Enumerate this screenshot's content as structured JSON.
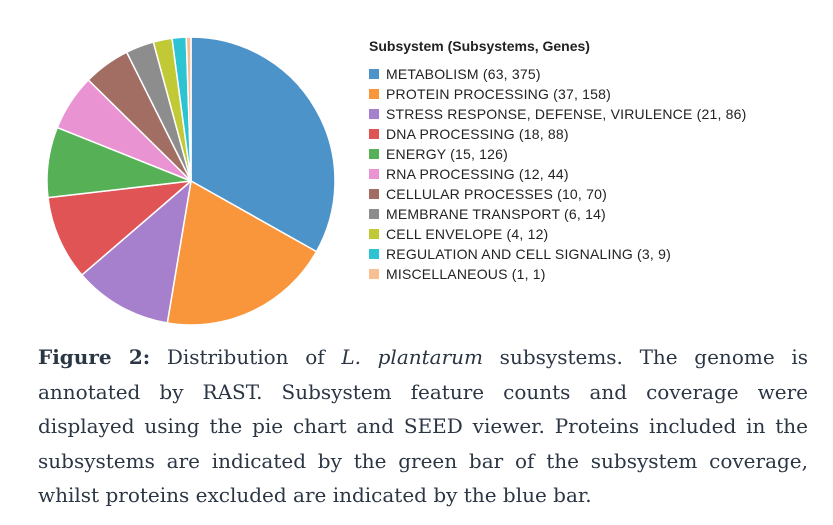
{
  "chart_data": {
    "type": "pie",
    "legend_title": "Subsystem (Subsystems, Genes)",
    "legend_position": "right",
    "start_angle_degrees": 0,
    "direction": "clockwise",
    "slices": [
      {
        "label": "METABOLISM (63, 375)",
        "name": "METABOLISM",
        "subsystems": 63,
        "genes": 375,
        "color": "#4c93c9"
      },
      {
        "label": "PROTEIN PROCESSING (37, 158)",
        "name": "PROTEIN PROCESSING",
        "subsystems": 37,
        "genes": 158,
        "color": "#f9963b"
      },
      {
        "label": "STRESS RESPONSE, DEFENSE, VIRULENCE (21, 86)",
        "name": "STRESS RESPONSE, DEFENSE, VIRULENCE",
        "subsystems": 21,
        "genes": 86,
        "color": "#a780cd"
      },
      {
        "label": "DNA PROCESSING (18, 88)",
        "name": "DNA PROCESSING",
        "subsystems": 18,
        "genes": 88,
        "color": "#e05455"
      },
      {
        "label": "ENERGY (15, 126)",
        "name": "ENERGY",
        "subsystems": 15,
        "genes": 126,
        "color": "#56b156"
      },
      {
        "label": "RNA PROCESSING (12, 44)",
        "name": "RNA PROCESSING",
        "subsystems": 12,
        "genes": 44,
        "color": "#ea93d2"
      },
      {
        "label": "CELLULAR PROCESSES (10, 70)",
        "name": "CELLULAR PROCESSES",
        "subsystems": 10,
        "genes": 70,
        "color": "#a26e63"
      },
      {
        "label": "MEMBRANE TRANSPORT (6, 14)",
        "name": "MEMBRANE TRANSPORT",
        "subsystems": 6,
        "genes": 14,
        "color": "#8d8d8d"
      },
      {
        "label": "CELL ENVELOPE (4, 12)",
        "name": "CELL ENVELOPE",
        "subsystems": 4,
        "genes": 12,
        "color": "#c2c936"
      },
      {
        "label": "REGULATION AND CELL SIGNALING (3, 9)",
        "name": "REGULATION AND CELL SIGNALING",
        "subsystems": 3,
        "genes": 9,
        "color": "#2cc3d3"
      },
      {
        "label": "MISCELLANEOUS (1, 1)",
        "name": "MISCELLANEOUS",
        "subsystems": 1,
        "genes": 1,
        "color": "#f8bf92"
      }
    ]
  },
  "caption": {
    "label": "Figure 2:",
    "text_before_species": " Distribution of ",
    "species": "L. plantarum",
    "text_after_species": " subsystems. The genome is annotated by RAST. Subsystem feature counts and coverage were displayed using the pie chart and SEED viewer. Proteins included in the subsystems are indicated by the green bar of the subsystem coverage, whilst proteins excluded are indicated by the blue bar."
  }
}
